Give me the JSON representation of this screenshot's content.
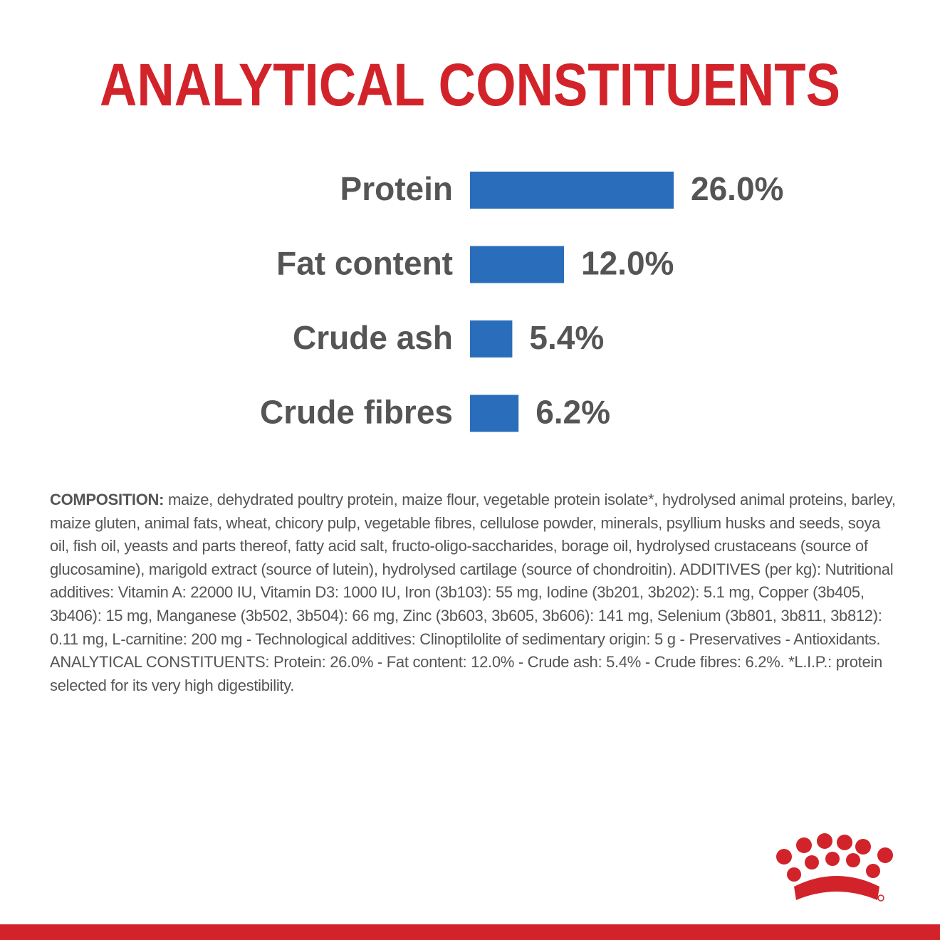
{
  "chart_data": {
    "type": "bar",
    "orientation": "horizontal",
    "title": "ANALYTICAL CONSTITUENTS",
    "categories": [
      "Protein",
      "Fat content",
      "Crude ash",
      "Crude fibres"
    ],
    "values": [
      26.0,
      12.0,
      5.4,
      6.2
    ],
    "value_labels": [
      "26.0%",
      "12.0%",
      "5.4%",
      "6.2%"
    ],
    "color": "#2a6ebb"
  },
  "composition": {
    "label": "COMPOSITION:",
    "text": "maize, dehydrated poultry protein, maize flour, vegetable protein isolate*, hydrolysed animal proteins, barley, maize gluten, animal fats, wheat, chicory pulp, vegetable fibres, cellulose powder, minerals, psyllium husks and seeds, soya oil, fish oil, yeasts and parts thereof, fatty acid salt, fructo-oligo-saccharides, borage oil, hydrolysed crustaceans (source of glucosamine), marigold extract (source of lutein), hydrolysed cartilage (source of chondroitin). ADDITIVES (per kg): Nutritional additives: Vitamin A: 22000 IU, Vitamin D3: 1000 IU, Iron (3b103): 55 mg, Iodine (3b201, 3b202): 5.1 mg, Copper (3b405, 3b406): 15 mg, Manganese (3b502, 3b504): 66 mg, Zinc (3b603, 3b605, 3b606): 141 mg, Selenium (3b801, 3b811, 3b812): 0.11 mg, L-carnitine: 200 mg - Technological additives: Clinoptilolite of sedimentary origin: 5 g - Preservatives - Antioxidants. ANALYTICAL CONSTITUENTS: Protein: 26.0% - Fat content: 12.0% - Crude ash: 5.4% - Crude fibres: 6.2%. *L.I.P.: protein selected for its very high digestibility."
  }
}
